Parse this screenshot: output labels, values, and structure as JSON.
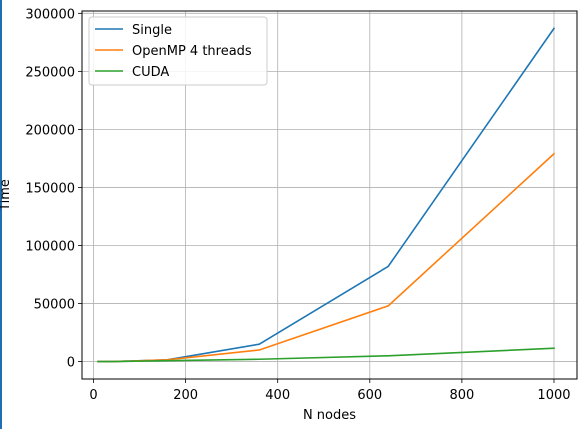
{
  "chart_data": {
    "type": "line",
    "title": "",
    "xlabel": "N nodes",
    "ylabel": "Time",
    "xlim": [
      -25,
      1050
    ],
    "ylim": [
      -15000,
      302000
    ],
    "xticks": [
      0,
      200,
      400,
      600,
      800,
      1000
    ],
    "yticks": [
      0,
      50000,
      100000,
      150000,
      200000,
      250000,
      300000
    ],
    "grid": true,
    "legend_position": "top-left",
    "series": [
      {
        "name": "Single",
        "color": "#1f77b4",
        "x": [
          10,
          40,
          160,
          360,
          640,
          1000
        ],
        "y": [
          0,
          0,
          1500,
          15000,
          82000,
          287000
        ]
      },
      {
        "name": "OpenMP 4 threads",
        "color": "#ff7f0e",
        "x": [
          10,
          40,
          160,
          360,
          640,
          1000
        ],
        "y": [
          0,
          0,
          1500,
          10000,
          48000,
          179000
        ]
      },
      {
        "name": "CUDA",
        "color": "#2ca02c",
        "x": [
          10,
          40,
          160,
          360,
          640,
          1000
        ],
        "y": [
          0,
          0,
          800,
          2000,
          5000,
          11500
        ]
      }
    ]
  }
}
